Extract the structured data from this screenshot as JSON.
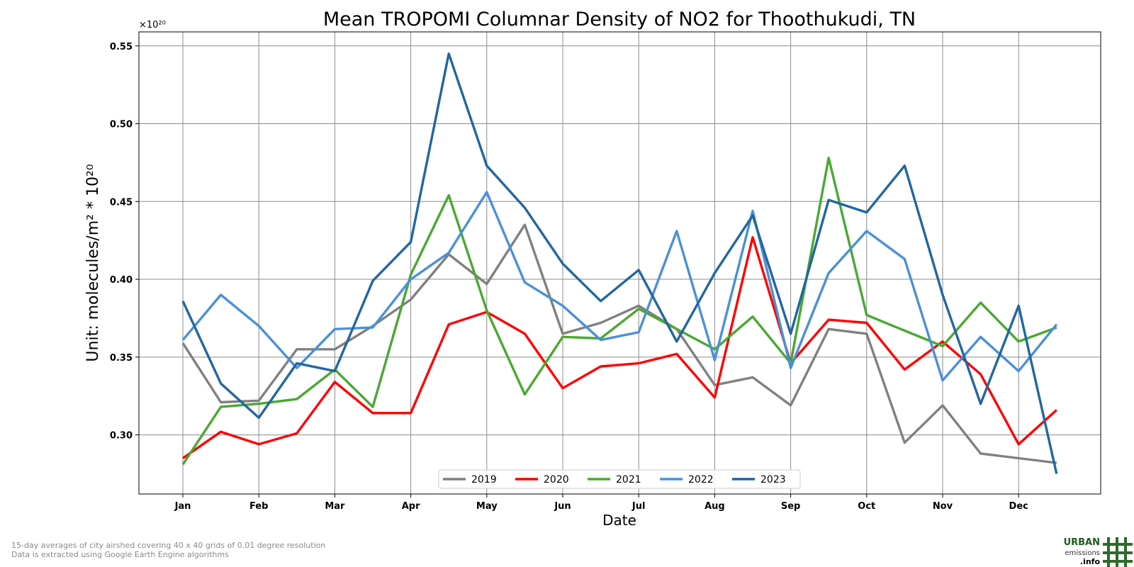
{
  "chart_data": {
    "type": "line",
    "title": "Mean TROPOMI Columnar Density of NO2 for Thoothukudi, TN",
    "xlabel": "Date",
    "ylabel": "Unit: molecules/m² * 10²⁰",
    "y_multiplier_label": "×10²⁰",
    "x_tick_labels": [
      "Jan",
      "Feb",
      "Mar",
      "Apr",
      "May",
      "Jun",
      "Jul",
      "Aug",
      "Sep",
      "Oct",
      "Nov",
      "Dec"
    ],
    "y_ticks": [
      0.3,
      0.35,
      0.4,
      0.45,
      0.5,
      0.55
    ],
    "ylim": [
      0.262,
      0.559
    ],
    "grid": true,
    "legend_position": "bottom-center",
    "x_points": [
      "Jan 1",
      "Jan 16",
      "Feb 1",
      "Feb 16",
      "Mar 1",
      "Mar 16",
      "Apr 1",
      "Apr 16",
      "May 1",
      "May 16",
      "Jun 1",
      "Jun 16",
      "Jul 1",
      "Jul 16",
      "Aug 1",
      "Aug 16",
      "Sep 1",
      "Sep 16",
      "Oct 1",
      "Oct 16",
      "Nov 1",
      "Nov 16",
      "Dec 1",
      "Dec 16"
    ],
    "series": [
      {
        "name": "2019",
        "color": "#808080",
        "values": [
          0.359,
          0.321,
          0.322,
          0.355,
          0.355,
          0.37,
          0.387,
          0.416,
          0.397,
          0.435,
          0.365,
          0.372,
          0.383,
          0.368,
          0.332,
          0.337,
          0.319,
          0.368,
          0.365,
          0.295,
          0.319,
          0.288,
          0.285,
          0.282
        ]
      },
      {
        "name": "2020",
        "color": "#ff0000",
        "values": [
          0.285,
          0.302,
          0.294,
          0.301,
          0.334,
          0.314,
          0.314,
          0.371,
          0.379,
          0.365,
          0.33,
          0.344,
          0.346,
          0.352,
          0.324,
          0.427,
          0.346,
          0.374,
          0.372,
          0.342,
          0.36,
          0.339,
          0.294,
          0.316
        ]
      },
      {
        "name": "2021",
        "color": "#4aa832",
        "values": [
          0.281,
          0.318,
          0.32,
          0.323,
          0.342,
          0.318,
          0.403,
          0.454,
          0.38,
          0.326,
          0.363,
          0.362,
          0.381,
          0.368,
          0.355,
          0.376,
          0.346,
          0.478,
          0.377,
          0.367,
          0.357,
          0.385,
          0.36,
          0.369
        ]
      },
      {
        "name": "2022",
        "color": "#4a90d9",
        "values": [
          0.361,
          0.39,
          0.37,
          0.343,
          0.368,
          0.369,
          0.4,
          0.417,
          0.456,
          0.398,
          0.383,
          0.361,
          0.366,
          0.431,
          0.348,
          0.444,
          0.343,
          0.404,
          0.431,
          0.413,
          0.335,
          0.363,
          0.341,
          0.371
        ]
      },
      {
        "name": "2023",
        "color": "#2266a0",
        "values": [
          0.386,
          0.333,
          0.311,
          0.346,
          0.341,
          0.399,
          0.424,
          0.545,
          0.473,
          0.446,
          0.41,
          0.386,
          0.406,
          0.36,
          0.404,
          0.441,
          0.365,
          0.451,
          0.443,
          0.473,
          0.39,
          0.32,
          0.383,
          0.275
        ]
      }
    ]
  },
  "footnotes": [
    "15-day averages of city airshed covering 40 x 40 grids of 0.01 degree resolution",
    "Data is extracted using Google Earth Engine algorithms"
  ],
  "logo": {
    "line1": "URBAN",
    "line2": "emissions",
    "line3": ".info",
    "color": "#2d6a2d"
  }
}
